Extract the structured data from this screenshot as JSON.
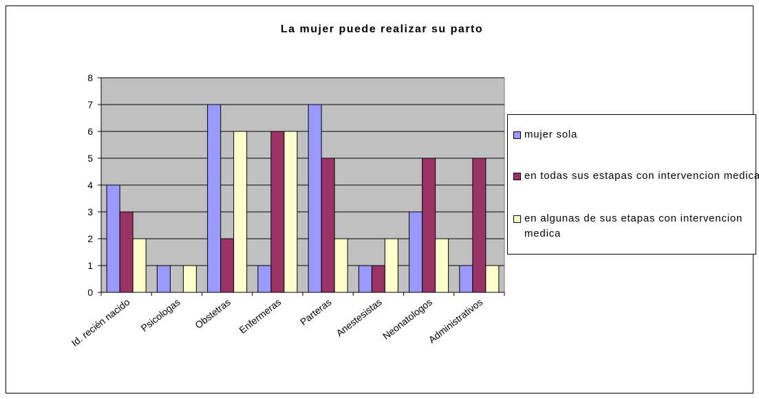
{
  "chart_data": {
    "type": "bar",
    "title": "La mujer puede realizar su parto",
    "categories": [
      "Id. recién nacido",
      "Psicologas",
      "Obstetras",
      "Enfermeras",
      "Parteras",
      "Anestesistas",
      "Neonatologos",
      "Administrativos"
    ],
    "series": [
      {
        "name": "mujer sola",
        "color": "#9999ff",
        "values": [
          4,
          1,
          7,
          1,
          7,
          1,
          3,
          1
        ]
      },
      {
        "name": "en todas sus estapas con intervencion medica",
        "color": "#993366",
        "values": [
          3,
          0,
          2,
          6,
          5,
          1,
          5,
          5
        ]
      },
      {
        "name": "en algunas de sus etapas con intervencion medica",
        "color": "#ffffcc",
        "values": [
          2,
          1,
          6,
          6,
          2,
          2,
          2,
          1
        ]
      }
    ],
    "ylim": [
      0,
      8
    ],
    "yticks": [
      0,
      1,
      2,
      3,
      4,
      5,
      6,
      7,
      8
    ],
    "grid": true,
    "legend": "right"
  }
}
